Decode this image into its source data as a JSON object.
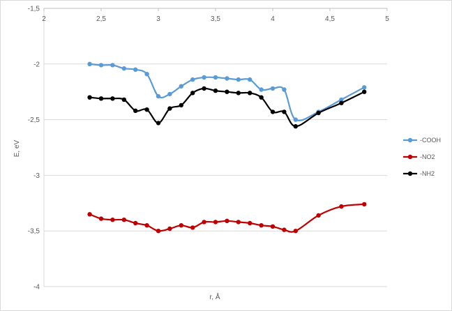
{
  "chart_data": {
    "type": "line",
    "title": "",
    "xlabel": "r, Å",
    "ylabel": "E, eV",
    "xlim": [
      2,
      5
    ],
    "ylim": [
      -4,
      -1.5
    ],
    "x_ticks": [
      2,
      2.5,
      3,
      3.5,
      4,
      4.5,
      5
    ],
    "x_tick_labels": [
      "2",
      "2,5",
      "3",
      "3,5",
      "4",
      "4,5",
      "5"
    ],
    "y_ticks": [
      -4,
      -3.5,
      -3,
      -2.5,
      -2,
      -1.5
    ],
    "y_tick_labels": [
      "-4",
      "-3,5",
      "-3",
      "-2,5",
      "-2",
      "-1,5"
    ],
    "x_axis_position": "top",
    "grid": {
      "horizontal": true,
      "vertical": false
    },
    "legend_position": "right",
    "series": [
      {
        "name": "-COOH",
        "color": "#5b9bd5",
        "x": [
          2.4,
          2.5,
          2.6,
          2.7,
          2.8,
          2.9,
          3.0,
          3.1,
          3.2,
          3.3,
          3.4,
          3.5,
          3.6,
          3.7,
          3.8,
          3.9,
          4.0,
          4.1,
          4.2,
          4.4,
          4.6,
          4.8
        ],
        "y": [
          -2.0,
          -2.01,
          -2.01,
          -2.04,
          -2.05,
          -2.09,
          -2.29,
          -2.27,
          -2.2,
          -2.14,
          -2.12,
          -2.12,
          -2.13,
          -2.14,
          -2.14,
          -2.23,
          -2.22,
          -2.23,
          -2.5,
          -2.43,
          -2.32,
          -2.21
        ]
      },
      {
        "name": "-NO2",
        "color": "#c00000",
        "x": [
          2.4,
          2.5,
          2.6,
          2.7,
          2.8,
          2.9,
          3.0,
          3.1,
          3.2,
          3.3,
          3.4,
          3.5,
          3.6,
          3.7,
          3.8,
          3.9,
          4.0,
          4.1,
          4.2,
          4.4,
          4.6,
          4.8
        ],
        "y": [
          -3.35,
          -3.39,
          -3.4,
          -3.4,
          -3.43,
          -3.45,
          -3.5,
          -3.48,
          -3.45,
          -3.47,
          -3.42,
          -3.42,
          -3.41,
          -3.42,
          -3.43,
          -3.45,
          -3.46,
          -3.49,
          -3.5,
          -3.36,
          -3.28,
          -3.26
        ]
      },
      {
        "name": "-NH2",
        "color": "#000000",
        "x": [
          2.4,
          2.5,
          2.6,
          2.7,
          2.8,
          2.9,
          3.0,
          3.1,
          3.2,
          3.3,
          3.4,
          3.5,
          3.6,
          3.7,
          3.8,
          3.9,
          4.0,
          4.1,
          4.2,
          4.4,
          4.6,
          4.8
        ],
        "y": [
          -2.3,
          -2.31,
          -2.31,
          -2.32,
          -2.42,
          -2.41,
          -2.53,
          -2.4,
          -2.37,
          -2.26,
          -2.22,
          -2.24,
          -2.25,
          -2.26,
          -2.26,
          -2.3,
          -2.43,
          -2.43,
          -2.56,
          -2.44,
          -2.35,
          -2.25
        ]
      }
    ]
  }
}
